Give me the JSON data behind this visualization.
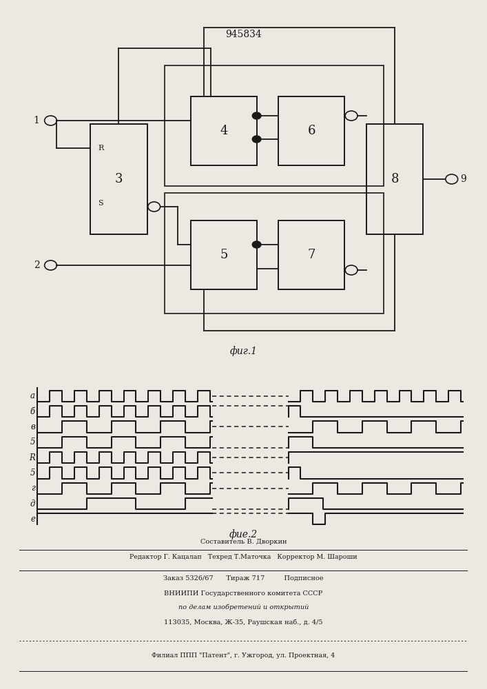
{
  "patent_number": "945834",
  "fig1_caption": "фиг.1",
  "fig2_caption": "фие.2",
  "background_color": "#ede9e2",
  "line_color": "#1a1a1a",
  "text_color": "#1a1a1a",
  "footer_lines": [
    "Составитель В. Дворкин",
    "Редактор Г. Кацалап   Техред Т.Маточка   Корректор М. Шароши",
    "Заказ 5326/67      Тираж 717         Подписное",
    "ВНИИПИ Государственного комитета СССР",
    "по делам изобретений и открытий",
    "113035, Москва, Ж-35, Раушская наб., д. 4/5",
    "Филиал ППП \"Патент\", г. Ужгород, ул. Проектная, 4"
  ]
}
